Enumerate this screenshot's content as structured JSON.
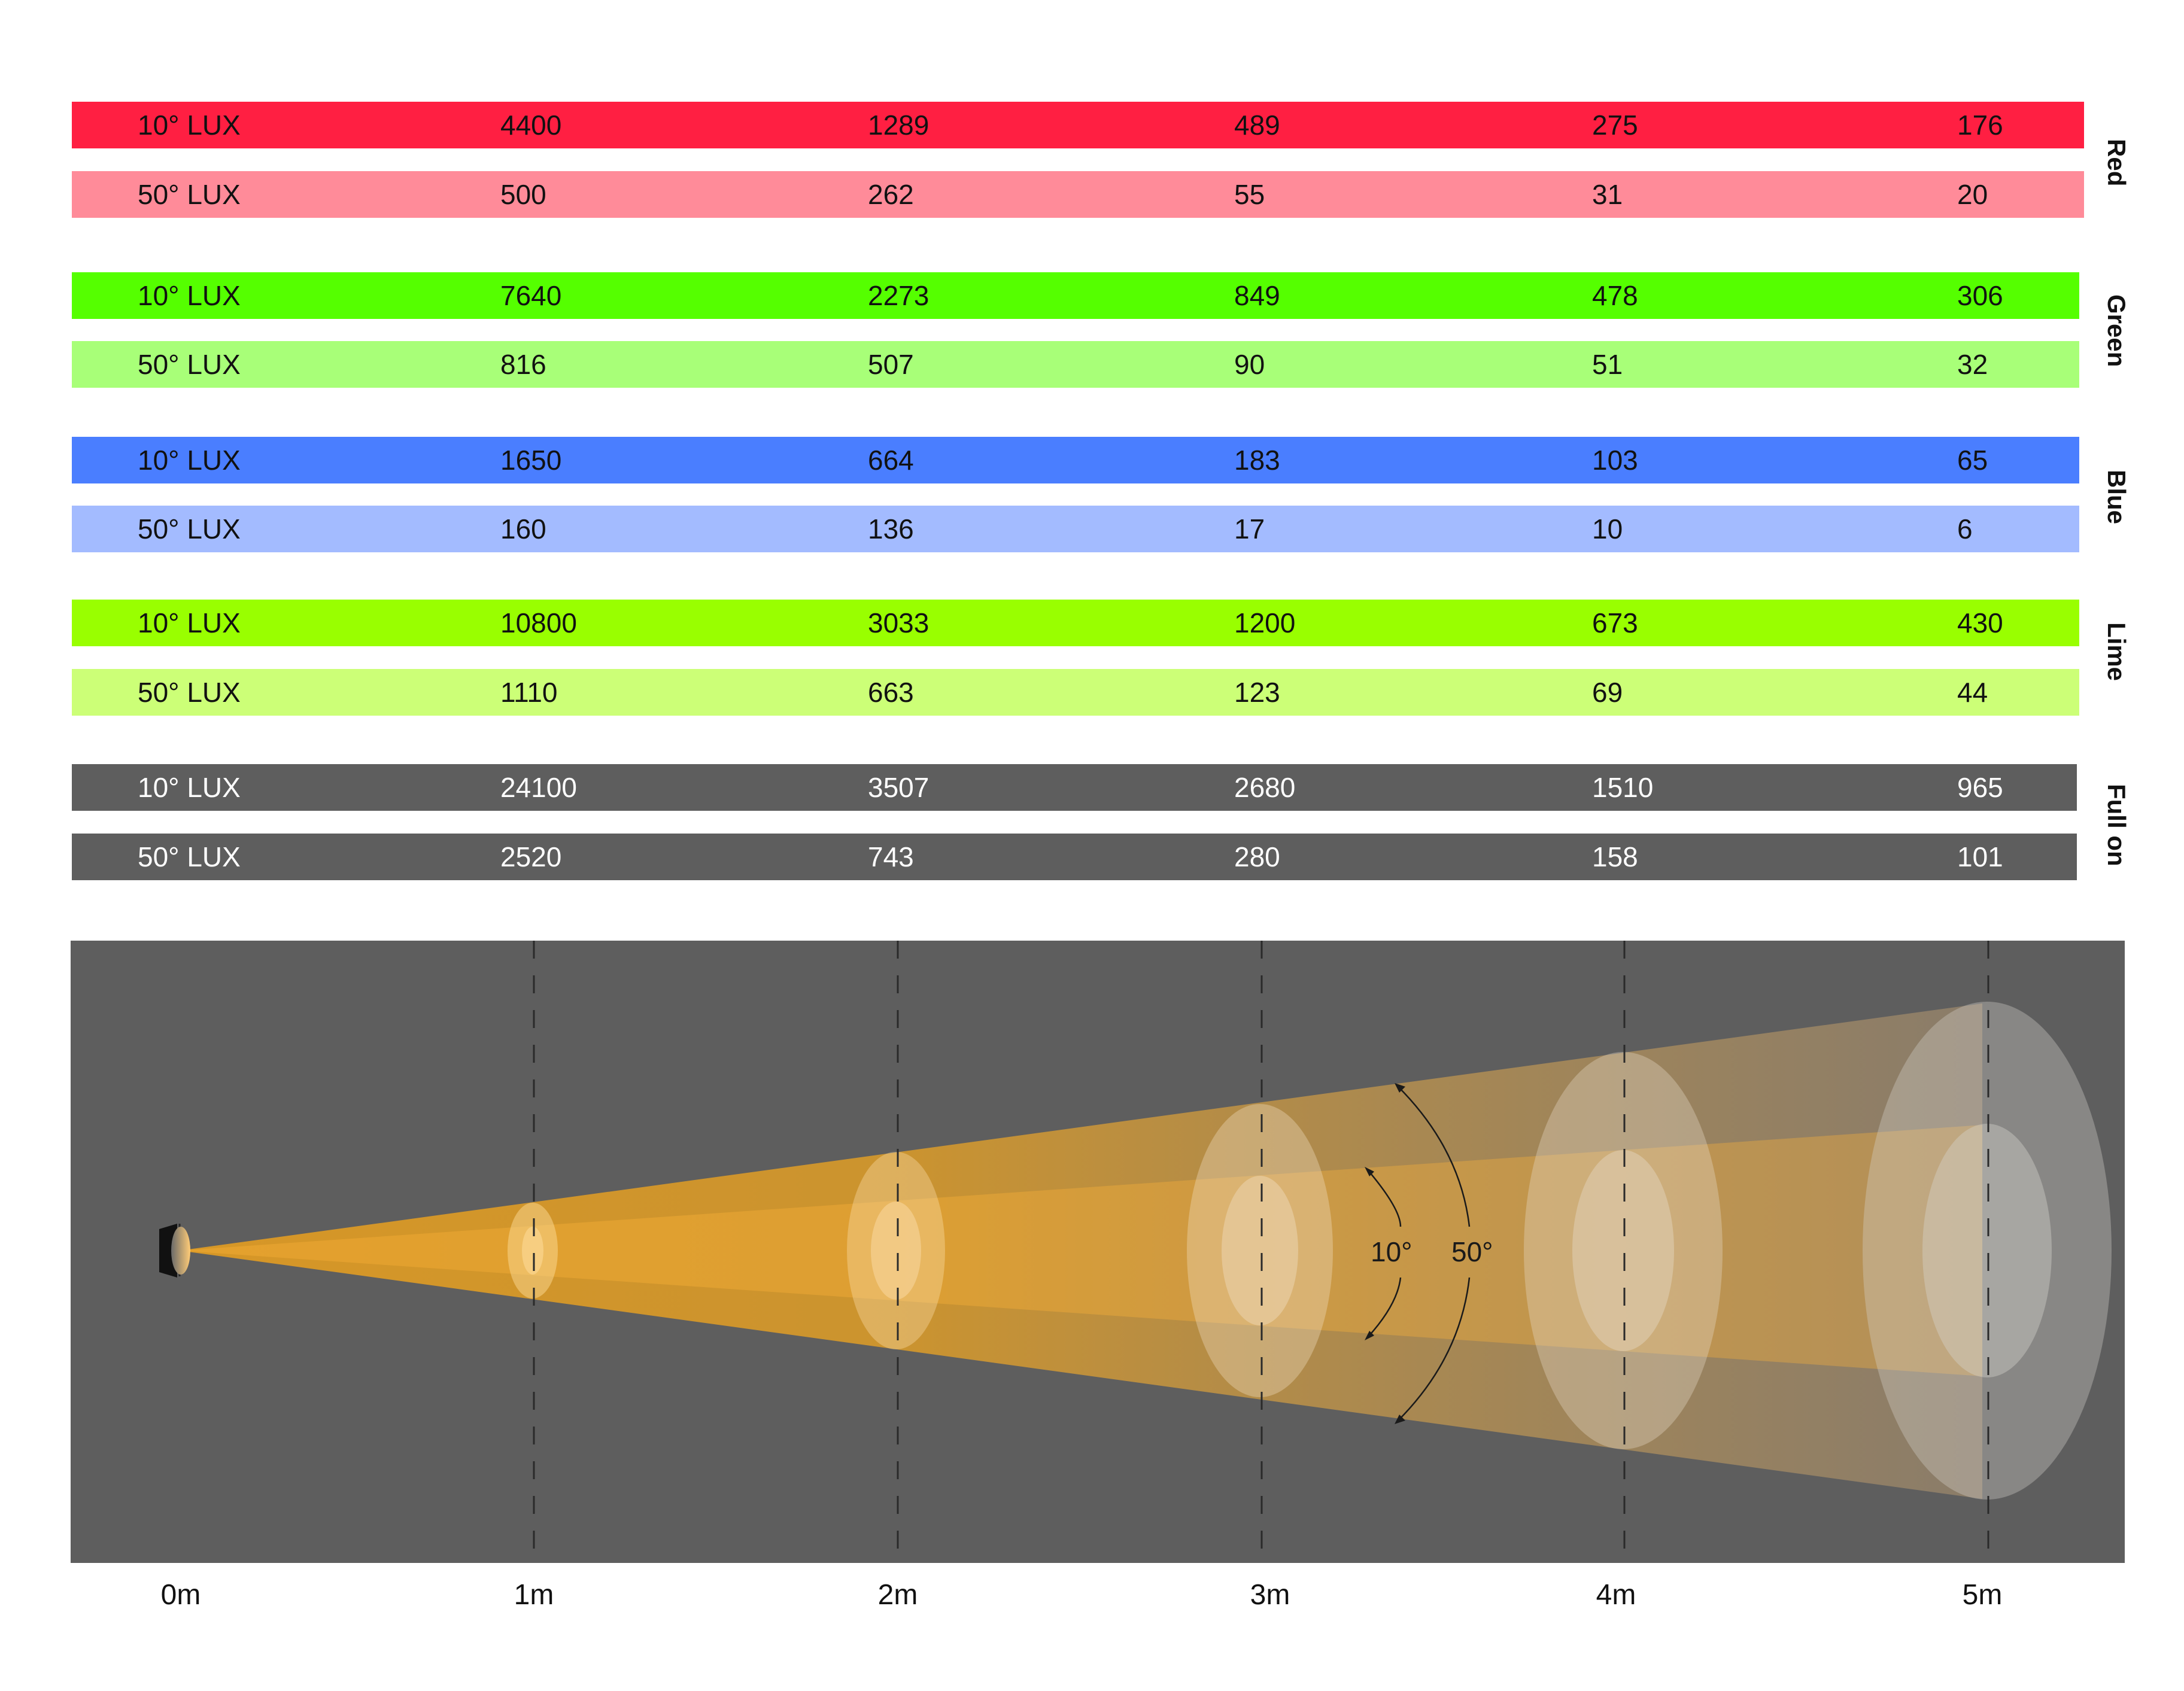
{
  "groups": [
    {
      "name": "Red",
      "colors": [
        "#ff1f42",
        "#ff8b99"
      ],
      "rows": [
        {
          "label": "10° LUX",
          "values": [
            "4400",
            "1289",
            "489",
            "275",
            "176"
          ]
        },
        {
          "label": "50° LUX",
          "values": [
            "500",
            "262",
            "55",
            "31",
            "20"
          ]
        }
      ]
    },
    {
      "name": "Green",
      "colors": [
        "#55ff00",
        "#a8ff78"
      ],
      "rows": [
        {
          "label": "10° LUX",
          "values": [
            "7640",
            "2273",
            "849",
            "478",
            "306"
          ]
        },
        {
          "label": "50° LUX",
          "values": [
            "816",
            "507",
            "90",
            "51",
            "32"
          ]
        }
      ]
    },
    {
      "name": "Blue",
      "colors": [
        "#4a7eff",
        "#a3bbff"
      ],
      "rows": [
        {
          "label": "10° LUX",
          "values": [
            "1650",
            "664",
            "183",
            "103",
            "65"
          ]
        },
        {
          "label": "50° LUX",
          "values": [
            "160",
            "136",
            "17",
            "10",
            "6"
          ]
        }
      ]
    },
    {
      "name": "Lime",
      "colors": [
        "#99ff00",
        "#ccff77"
      ],
      "rows": [
        {
          "label": "10° LUX",
          "values": [
            "10800",
            "3033",
            "1200",
            "673",
            "430"
          ]
        },
        {
          "label": "50° LUX",
          "values": [
            "1110",
            "663",
            "123",
            "69",
            "44"
          ]
        }
      ]
    },
    {
      "name": "Full on",
      "colors": [
        "#5e5e5e",
        "#5e5e5e"
      ],
      "rows": [
        {
          "label": "10° LUX",
          "values": [
            "24100",
            "3507",
            "2680",
            "1510",
            "965"
          ]
        },
        {
          "label": "50° LUX",
          "values": [
            "2520",
            "743",
            "280",
            "158",
            "101"
          ]
        }
      ]
    }
  ],
  "diagram": {
    "background": "#5e5e5e",
    "beam_color": "#ffaa14",
    "angle_labels": [
      "10°",
      "50°"
    ],
    "distances": [
      "0m",
      "1m",
      "2m",
      "3m",
      "4m",
      "5m"
    ]
  }
}
